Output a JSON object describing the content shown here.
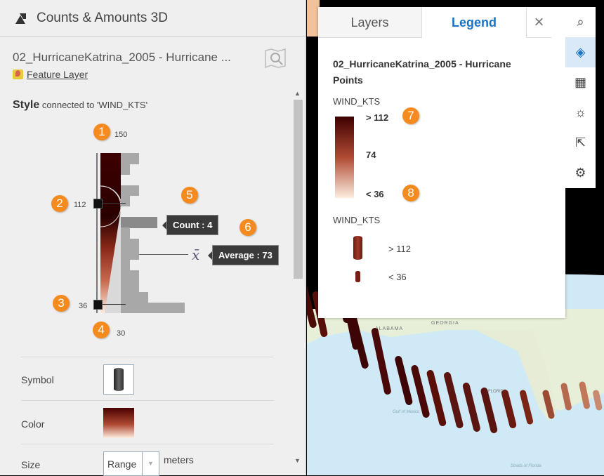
{
  "panel": {
    "title": "Counts & Amounts 3D",
    "layer_name": "02_HurricaneKatrina_2005 - Hurricane ...",
    "layer_type": "Feature Layer",
    "style_label": "Style",
    "style_connected": "connected to 'WIND_KTS'"
  },
  "slider": {
    "max": "150",
    "min": "30",
    "upper_handle": "112",
    "lower_handle": "36",
    "count_tooltip": "Count : 4",
    "average_symbol": "x̄",
    "average_tooltip": "Average : 73",
    "histogram_counts": [
      2,
      1,
      0,
      2,
      1,
      0,
      4,
      1,
      2,
      2,
      1,
      2,
      2,
      3,
      7
    ],
    "highlighted_bin": 6
  },
  "badges": [
    "1",
    "2",
    "3",
    "4",
    "5",
    "6",
    "7",
    "8"
  ],
  "properties": {
    "symbol_label": "Symbol",
    "color_label": "Color",
    "size_label": "Size",
    "size_mode": "Range",
    "size_unit": "meters"
  },
  "legend": {
    "tab_layers": "Layers",
    "tab_legend": "Legend",
    "close": "×",
    "layer_title": "02_HurricaneKatrina_2005 - Hurricane Points",
    "color_field": "WIND_KTS",
    "color_high": "> 112",
    "color_mid": "74",
    "color_low": "< 36",
    "size_field": "WIND_KTS",
    "size_high": "> 112",
    "size_low": "< 36"
  },
  "map_labels": {
    "alabama": "ALABAMA",
    "georgia": "GEORGIA",
    "florida": "FLORIDA",
    "gulf": "Gulf of Mexico",
    "straits": "Straits of Florida"
  },
  "colors": {
    "ramp_high": "#3d0000",
    "ramp_mid": "#b04a33",
    "ramp_low": "#fdeee0",
    "accent": "#1a73c4",
    "badge": "#f58a1f"
  }
}
